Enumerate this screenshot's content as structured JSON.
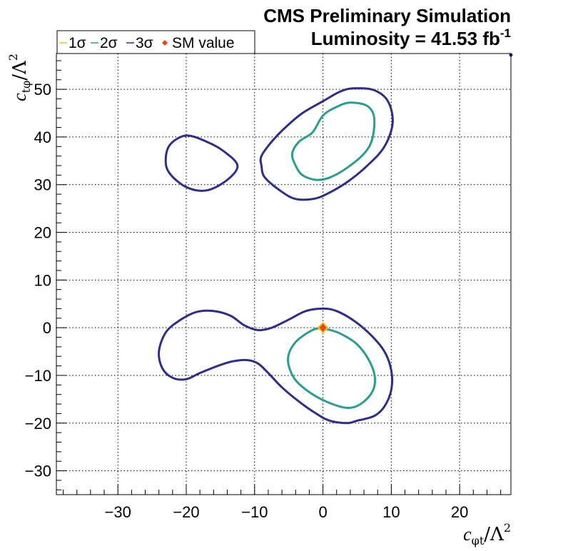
{
  "header": {
    "line1": "CMS Preliminary Simulation",
    "line2_main": "Luminosity = 41.53 fb",
    "line2_sup": "-1"
  },
  "legend": {
    "entries": [
      "1σ",
      "2σ",
      "3σ",
      "SM value"
    ]
  },
  "axes": {
    "x_title": {
      "var": "c",
      "sub": "φt",
      "slash": "/",
      "lambda": "Λ",
      "sup": "2"
    },
    "y_title": {
      "var": "c",
      "sub": "tφ",
      "slash": "/",
      "lambda": "Λ",
      "sup": "2"
    }
  },
  "colors": {
    "sigma1": "#e8c22a",
    "sigma2": "#2a9d8f",
    "sigma3": "#2e2e8a",
    "sm_marker": "#e8461a"
  },
  "chart_data": {
    "type": "contour",
    "xlim": [
      -39,
      27.5
    ],
    "ylim": [
      -35,
      57.5
    ],
    "xticks": [
      -30,
      -20,
      -10,
      0,
      10,
      20
    ],
    "yticks": [
      -30,
      -20,
      -10,
      0,
      10,
      20,
      30,
      40,
      50
    ],
    "x_tick_labels": [
      "−30",
      "−20",
      "−10",
      "0",
      "10",
      "20"
    ],
    "y_tick_labels": [
      "−30",
      "−20",
      "−10",
      "0",
      "10",
      "20",
      "30",
      "40",
      "50"
    ],
    "grid": true,
    "legend_position": "top-left",
    "series": [
      {
        "name": "2σ",
        "color": "#2a9d8f",
        "contours": [
          [
            [
              -1.5,
              41
            ],
            [
              0,
              44.5
            ],
            [
              2,
              46.3
            ],
            [
              4,
              47.2
            ],
            [
              6.5,
              46.5
            ],
            [
              7.5,
              44
            ],
            [
              7.2,
              39.5
            ],
            [
              6,
              36.5
            ],
            [
              3.5,
              33.5
            ],
            [
              1,
              31.5
            ],
            [
              -1,
              31
            ],
            [
              -3,
              32
            ],
            [
              -4,
              34
            ],
            [
              -4.5,
              36.5
            ],
            [
              -3.5,
              39
            ],
            [
              -1.5,
              41
            ]
          ],
          [
            [
              -5,
              -5.5
            ],
            [
              -4,
              -3
            ],
            [
              -2.5,
              -1.3
            ],
            [
              -1,
              -0.2
            ],
            [
              0.5,
              -0.3
            ],
            [
              2.5,
              -1.2
            ],
            [
              5,
              -3.5
            ],
            [
              6.8,
              -7
            ],
            [
              7.6,
              -10.5
            ],
            [
              7.2,
              -13.5
            ],
            [
              5.5,
              -16
            ],
            [
              3.5,
              -16.8
            ],
            [
              0.5,
              -15.5
            ],
            [
              -2,
              -13.5
            ],
            [
              -4,
              -11
            ],
            [
              -5,
              -8
            ],
            [
              -5,
              -5.5
            ]
          ]
        ]
      },
      {
        "name": "3σ",
        "color": "#2e2e8a",
        "contours": [
          [
            [
              -9,
              36
            ],
            [
              -7.5,
              39
            ],
            [
              -5.5,
              42
            ],
            [
              -3,
              45
            ],
            [
              0,
              47.5
            ],
            [
              2.5,
              49.5
            ],
            [
              4.5,
              50.2
            ],
            [
              7.5,
              49.8
            ],
            [
              9.5,
              47.5
            ],
            [
              10.2,
              43
            ],
            [
              9,
              38
            ],
            [
              6.5,
              34
            ],
            [
              3.5,
              30.5
            ],
            [
              0.5,
              28
            ],
            [
              -1.5,
              27
            ],
            [
              -4,
              27
            ],
            [
              -6,
              28.5
            ],
            [
              -8.5,
              31.5
            ],
            [
              -9,
              34
            ],
            [
              -9,
              36
            ]
          ],
          [
            [
              -20,
              40.3
            ],
            [
              -17,
              39
            ],
            [
              -14.5,
              37
            ],
            [
              -12.5,
              34
            ],
            [
              -14,
              31
            ],
            [
              -17,
              28.8
            ],
            [
              -20,
              29.5
            ],
            [
              -22.5,
              32.5
            ],
            [
              -23,
              35.5
            ],
            [
              -22.3,
              38.5
            ],
            [
              -20,
              40.3
            ]
          ],
          [
            [
              -24,
              -5
            ],
            [
              -23,
              -1
            ],
            [
              -21,
              1.5
            ],
            [
              -18.5,
              3.3
            ],
            [
              -16,
              3.5
            ],
            [
              -13.5,
              2.5
            ],
            [
              -11.5,
              0.5
            ],
            [
              -9.5,
              -0.5
            ],
            [
              -7.5,
              0
            ],
            [
              -5,
              1.7
            ],
            [
              -2.5,
              3.5
            ],
            [
              0,
              4
            ],
            [
              2,
              3.5
            ],
            [
              4.5,
              1.5
            ],
            [
              7,
              -1.5
            ],
            [
              9,
              -5
            ],
            [
              10,
              -9
            ],
            [
              10,
              -13
            ],
            [
              9,
              -16.5
            ],
            [
              7.5,
              -18.5
            ],
            [
              5,
              -19.5
            ],
            [
              3.5,
              -20
            ],
            [
              1,
              -19.5
            ],
            [
              -1,
              -18
            ],
            [
              -3.5,
              -15.5
            ],
            [
              -6,
              -12.5
            ],
            [
              -8,
              -9.5
            ],
            [
              -9.5,
              -7.5
            ],
            [
              -11,
              -6.8
            ],
            [
              -13,
              -7
            ],
            [
              -15,
              -7.8
            ],
            [
              -18,
              -9.5
            ],
            [
              -20,
              -10.8
            ],
            [
              -22,
              -10.5
            ],
            [
              -23.5,
              -8.5
            ],
            [
              -24,
              -5
            ]
          ]
        ]
      },
      {
        "name": "1σ",
        "color": "#e8c22a",
        "contours": [
          [
            [
              -0.6,
              0
            ],
            [
              0,
              0.6
            ],
            [
              0.6,
              0
            ],
            [
              0,
              -0.6
            ],
            [
              -0.6,
              0
            ]
          ]
        ]
      }
    ],
    "points": [
      {
        "name": "SM value",
        "x": 0,
        "y": 0
      }
    ]
  }
}
